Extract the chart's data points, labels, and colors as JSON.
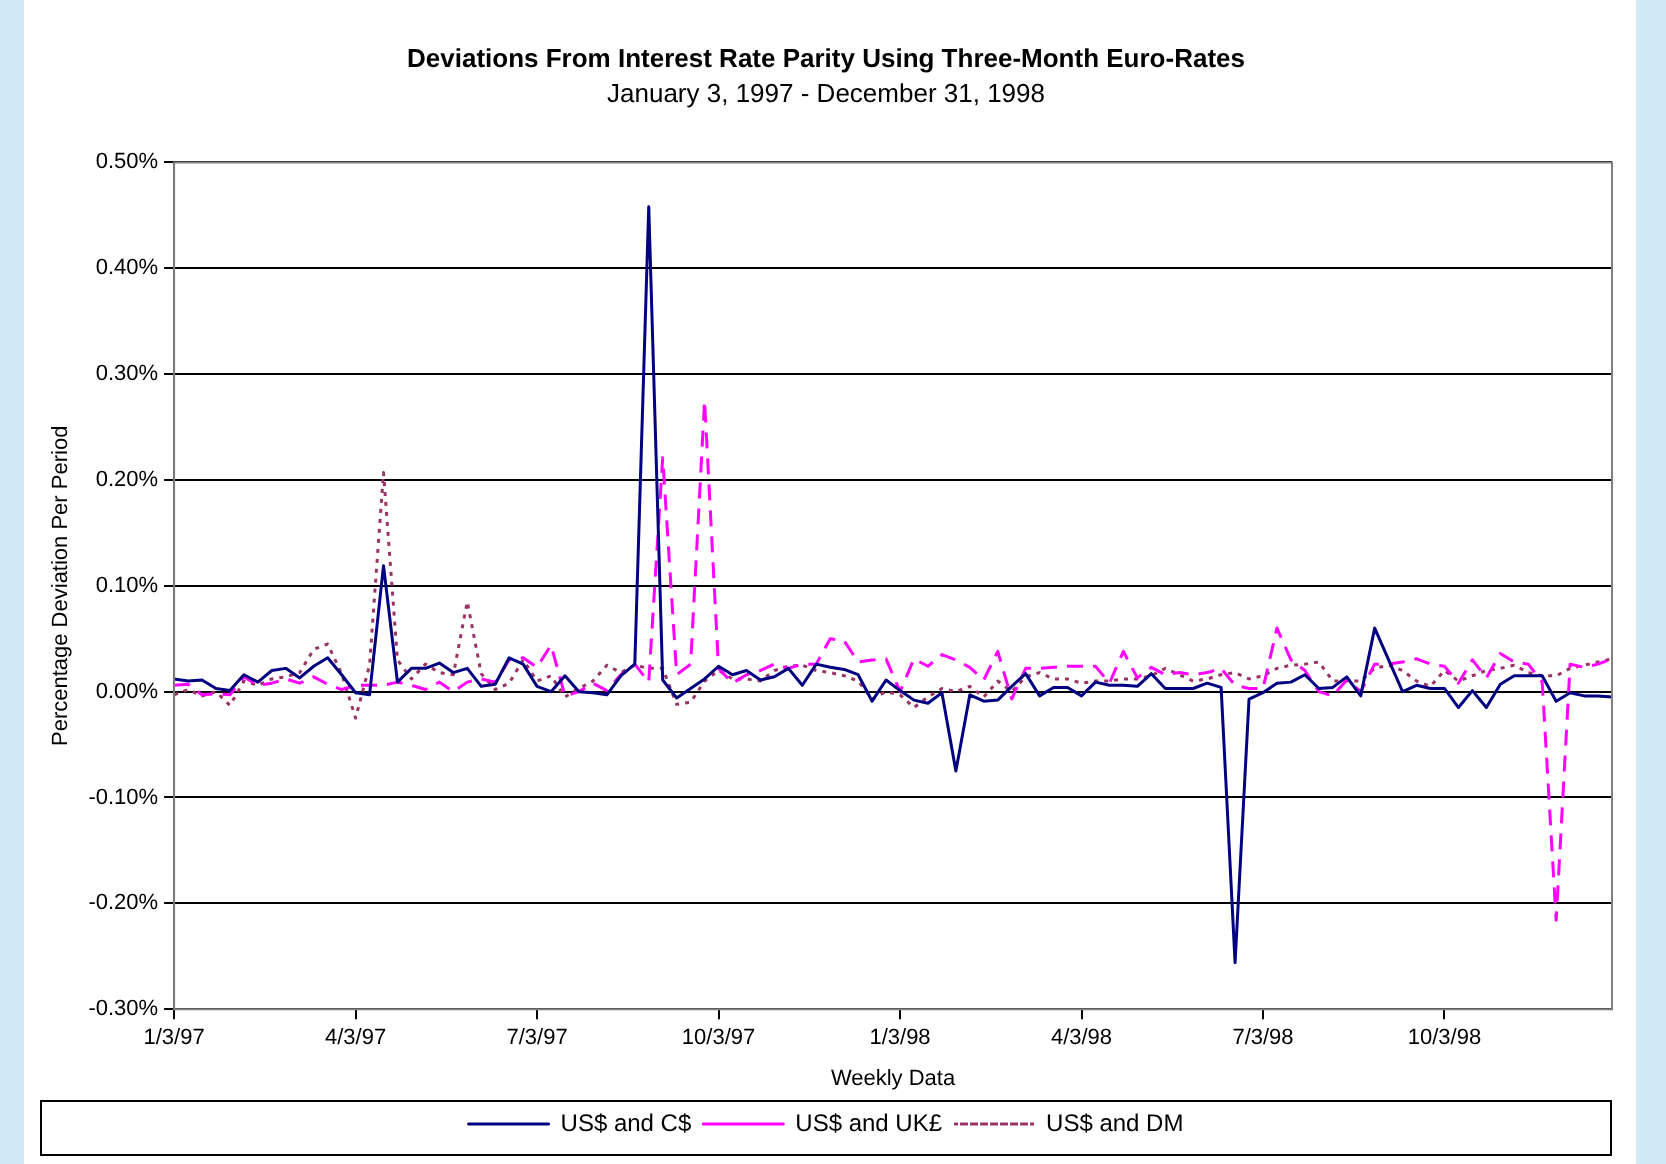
{
  "chart_data": {
    "type": "line",
    "title": "Deviations From Interest Rate Parity Using Three-Month Euro-Rates",
    "subtitle": "January 3, 1997 - December 31, 1998",
    "xlabel": "Weekly Data",
    "ylabel": "Percentage Deviation Per Period",
    "categories": [
      "1/3/97",
      null,
      null,
      null,
      null,
      null,
      null,
      null,
      null,
      null,
      null,
      null,
      null,
      "4/3/97",
      null,
      null,
      null,
      null,
      null,
      null,
      null,
      null,
      null,
      null,
      null,
      null,
      "7/3/97",
      null,
      null,
      null,
      null,
      null,
      null,
      null,
      null,
      null,
      null,
      null,
      null,
      "10/3/97",
      null,
      null,
      null,
      null,
      null,
      null,
      null,
      null,
      null,
      null,
      null,
      null,
      "1/3/98",
      null,
      null,
      null,
      null,
      null,
      null,
      null,
      null,
      null,
      null,
      null,
      null,
      "4/3/98",
      null,
      null,
      null,
      null,
      null,
      null,
      null,
      null,
      null,
      null,
      null,
      null,
      "7/3/98",
      null,
      null,
      null,
      null,
      null,
      null,
      null,
      null,
      null,
      null,
      null,
      null,
      "10/3/98",
      null,
      null,
      null,
      null,
      null,
      null,
      null,
      null,
      null,
      null,
      null,
      null
    ],
    "series": [
      {
        "name": "US$ and C$",
        "color": "#000080",
        "line_style": "solid",
        "values": [
          0.012,
          0.01,
          0.011,
          0.003,
          0.001,
          0.016,
          0.009,
          0.02,
          0.022,
          0.013,
          0.024,
          0.032,
          0.016,
          -0.001,
          -0.003,
          0.119,
          0.009,
          0.022,
          0.022,
          0.027,
          0.018,
          0.022,
          0.005,
          0.007,
          0.032,
          0.026,
          0.005,
          0,
          0.015,
          0,
          -0.001,
          -0.003,
          0.015,
          0.026,
          0.458,
          0.011,
          -0.006,
          0.003,
          0.012,
          0.024,
          0.016,
          0.02,
          0.011,
          0.014,
          0.022,
          0.006,
          0.026,
          0.023,
          0.021,
          0.016,
          -0.009,
          0.011,
          0.001,
          -0.008,
          -0.011,
          -0.001,
          -0.075,
          -0.003,
          -0.009,
          -0.008,
          0.005,
          0.017,
          -0.004,
          0.004,
          0.004,
          -0.004,
          0.009,
          0.006,
          0.006,
          0.005,
          0.017,
          0.003,
          0.003,
          0.003,
          0.008,
          0.004,
          -0.256,
          -0.007,
          -0.001,
          0.008,
          0.009,
          0.016,
          0.003,
          0.004,
          0.014,
          -0.004,
          0.06,
          0.03,
          0,
          0.006,
          0.003,
          0.003,
          -0.015,
          0.001,
          -0.015,
          0.007,
          0.015,
          0.015,
          0.015,
          -0.009,
          -0.001,
          -0.004,
          -0.004,
          -0.005
        ]
      },
      {
        "name": "US$ and UK£",
        "color": "#ff00ff",
        "line_style": "dashed",
        "values": [
          0.006,
          0.007,
          -0.003,
          -0.002,
          -0.003,
          0.014,
          0.006,
          0.008,
          0.012,
          0.008,
          0.014,
          0.007,
          0.002,
          0.006,
          0.006,
          0.006,
          0.009,
          0.006,
          0.002,
          0.009,
          0,
          0.009,
          0.012,
          0.009,
          0.03,
          0.032,
          0.023,
          0.044,
          -0.004,
          0,
          0.008,
          0.001,
          0.016,
          0.026,
          0.009,
          0.221,
          0.016,
          0.026,
          0.275,
          0.022,
          0.008,
          0.016,
          0.02,
          0.026,
          0.022,
          0.026,
          0.026,
          0.05,
          0.048,
          0.028,
          0.03,
          0.031,
          0,
          0.031,
          0.024,
          0.035,
          0.03,
          0.023,
          0.011,
          0.038,
          -0.007,
          0.022,
          0.022,
          0.023,
          0.024,
          0.024,
          0.024,
          0.008,
          0.038,
          0.013,
          0.023,
          0.016,
          0.018,
          0.016,
          0.018,
          0.022,
          0.006,
          0.003,
          0.003,
          0.06,
          0.03,
          0.02,
          0,
          -0.004,
          0.011,
          0,
          0.026,
          0.026,
          0.028,
          0.031,
          0.026,
          0.024,
          0.008,
          0.03,
          0.013,
          0.036,
          0.028,
          0.026,
          0.009,
          -0.216,
          0.026,
          0.023,
          0.026,
          0.031
        ]
      },
      {
        "name": "US$ and DM",
        "color": "#993366",
        "line_style": "dotted",
        "values": [
          -0.003,
          0.002,
          -0.004,
          0,
          -0.013,
          0.01,
          0.006,
          0.012,
          0.014,
          0.018,
          0.04,
          0.045,
          0.017,
          -0.025,
          0.025,
          0.207,
          0.03,
          0.012,
          0.026,
          0.018,
          0.016,
          0.085,
          0.017,
          0.002,
          0.008,
          0.03,
          0.01,
          0.015,
          -0.005,
          0.003,
          0.01,
          0.025,
          0.018,
          0.025,
          0.022,
          0.022,
          -0.012,
          -0.01,
          0.01,
          0.02,
          0.012,
          0.012,
          0.01,
          0.02,
          0.024,
          0.025,
          0.02,
          0.018,
          0.015,
          0.01,
          -0.007,
          0,
          -0.003,
          -0.015,
          -0.005,
          0.003,
          0,
          0.005,
          -0.005,
          0.01,
          0,
          0.014,
          0.018,
          0.012,
          0.012,
          0.008,
          0.01,
          0.01,
          0.012,
          0.012,
          0.015,
          0.022,
          0.016,
          0.01,
          0.012,
          0.016,
          0.018,
          0.012,
          0.015,
          0.022,
          0.025,
          0.026,
          0.028,
          0.01,
          0.01,
          0.01,
          0.022,
          0.025,
          0.02,
          0.01,
          0.005,
          0.02,
          0.01,
          0.015,
          0.02,
          0.022,
          0.025,
          0.018,
          0.015,
          0.015,
          0.022,
          0.025,
          0.028,
          0.031
        ]
      }
    ],
    "ylim": [
      -0.3,
      0.5
    ],
    "yticks": [
      {
        "value": -0.3,
        "label": "-0.30%"
      },
      {
        "value": -0.2,
        "label": "-0.20%"
      },
      {
        "value": -0.1,
        "label": "-0.10%"
      },
      {
        "value": 0,
        "label": "0.00%"
      },
      {
        "value": 0.1,
        "label": "0.10%"
      },
      {
        "value": 0.2,
        "label": "0.20%"
      },
      {
        "value": 0.3,
        "label": "0.30%"
      },
      {
        "value": 0.4,
        "label": "0.40%"
      },
      {
        "value": 0.5,
        "label": "0.50%"
      }
    ],
    "grid": "y",
    "legend": "bottom",
    "marker": "none"
  }
}
